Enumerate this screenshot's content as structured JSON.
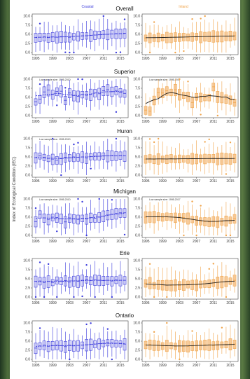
{
  "figure": {
    "y_axis_label": "Index of Ecological Condition (IEC)",
    "series_labels": [
      "Coastal",
      "Inland"
    ],
    "colors": {
      "coastal": "#3b3bdc",
      "inland": "#f0a44a",
      "trend": "#222222"
    }
  },
  "chart_data": [
    {
      "type": "box",
      "region": "Overall",
      "panels": [
        {
          "series": "Coastal",
          "note": "",
          "x": [
            1995,
            1996,
            1997,
            1998,
            1999,
            2000,
            2001,
            2002,
            2003,
            2004,
            2005,
            2006,
            2007,
            2008,
            2009,
            2010,
            2011,
            2012,
            2013,
            2014,
            2015,
            2016
          ],
          "median": [
            4.1,
            4.2,
            4.3,
            4.1,
            4.3,
            4.2,
            4.4,
            4.3,
            4.2,
            4.4,
            4.5,
            4.6,
            4.6,
            4.7,
            4.8,
            4.9,
            5.0,
            5.0,
            5.1,
            5.2,
            5.2,
            5.3
          ]
        },
        {
          "series": "Inland",
          "note": "",
          "x": [
            1995,
            1996,
            1997,
            1998,
            1999,
            2000,
            2001,
            2002,
            2003,
            2004,
            2005,
            2006,
            2007,
            2008,
            2009,
            2010,
            2011,
            2012,
            2013,
            2014,
            2015,
            2016
          ],
          "median": [
            4.0,
            4.1,
            4.0,
            4.2,
            4.1,
            4.2,
            4.1,
            4.3,
            4.2,
            4.3,
            4.2,
            4.3,
            4.4,
            4.3,
            4.4,
            4.4,
            4.5,
            4.4,
            4.5,
            4.5,
            4.6,
            4.6
          ]
        }
      ],
      "xticks": [
        "1995",
        "1999",
        "2003",
        "2007",
        "2011",
        "2015"
      ],
      "yticks": [
        "0.0",
        "2.5",
        "5.0",
        "7.5",
        "10.0"
      ],
      "ylim": [
        0,
        10
      ]
    },
    {
      "type": "box",
      "region": "Superior",
      "panels": [
        {
          "series": "Coastal",
          "note": "Low sample size: 1995-2010",
          "x": [
            1995,
            1996,
            1997,
            1998,
            1999,
            2000,
            2001,
            2002,
            2003,
            2004,
            2005,
            2006,
            2007,
            2008,
            2009,
            2010,
            2011,
            2012,
            2013,
            2014,
            2015,
            2016
          ],
          "median": [
            3.8,
            4.5,
            6.5,
            7.0,
            5.8,
            6.6,
            6.7,
            4.2,
            6.2,
            5.5,
            5.3,
            5.8,
            5.6,
            5.8,
            6.2,
            6.0,
            6.8,
            7.1,
            6.6,
            6.9,
            6.3,
            6.1
          ]
        },
        {
          "series": "Inland",
          "note": "Low sample size: 1995-2017",
          "x": [
            1995,
            1996,
            1997,
            1998,
            1999,
            2000,
            2001,
            2002,
            2003,
            2004,
            2005,
            2006,
            2007,
            2008,
            2009,
            2010,
            2011,
            2012,
            2013,
            2014,
            2015,
            2016
          ],
          "median": [
            1.5,
            1.2,
            4.2,
            6.3,
            6.2,
            6.8,
            6.4,
            7.1,
            5.8,
            5.6,
            5.2,
            3.6,
            5.2,
            5.0,
            5.0,
            5.0,
            7.9,
            5.2,
            5.0,
            4.6,
            4.3,
            3.6
          ]
        }
      ],
      "xticks": [
        "1995",
        "1999",
        "2003",
        "2007",
        "2011",
        "2015"
      ],
      "yticks": [
        "0.0",
        "2.5",
        "5.0",
        "7.5",
        "10.0"
      ],
      "ylim": [
        0,
        10
      ]
    },
    {
      "type": "box",
      "region": "Huron",
      "panels": [
        {
          "series": "Coastal",
          "note": "Low sample size: 1995-2010",
          "x": [
            1995,
            1996,
            1997,
            1998,
            1999,
            2000,
            2001,
            2002,
            2003,
            2004,
            2005,
            2006,
            2007,
            2008,
            2009,
            2010,
            2011,
            2012,
            2013,
            2014,
            2015,
            2016
          ],
          "median": [
            4.8,
            5.3,
            4.9,
            4.6,
            4.4,
            4.1,
            4.5,
            4.9,
            4.8,
            5.0,
            4.9,
            5.0,
            4.7,
            5.1,
            5.2,
            5.2,
            5.3,
            5.3,
            5.4,
            5.3,
            5.4,
            5.3
          ]
        },
        {
          "series": "Inland",
          "note": "",
          "x": [
            1995,
            1996,
            1997,
            1998,
            1999,
            2000,
            2001,
            2002,
            2003,
            2004,
            2005,
            2006,
            2007,
            2008,
            2009,
            2010,
            2011,
            2012,
            2013,
            2014,
            2015,
            2016
          ],
          "median": [
            4.4,
            4.6,
            4.3,
            4.5,
            4.4,
            4.4,
            4.6,
            4.4,
            4.5,
            4.5,
            4.4,
            4.6,
            4.5,
            4.6,
            4.5,
            4.6,
            4.6,
            4.5,
            4.6,
            4.6,
            4.5,
            4.6
          ]
        }
      ],
      "xticks": [
        "1995",
        "1999",
        "2003",
        "2007",
        "2011",
        "2015"
      ],
      "yticks": [
        "0.0",
        "2.5",
        "5.0",
        "7.5",
        "10.0"
      ],
      "ylim": [
        0,
        10
      ]
    },
    {
      "type": "box",
      "region": "Michigan",
      "panels": [
        {
          "series": "Coastal",
          "note": "Low sample size: 1995-2010",
          "x": [
            1995,
            1996,
            1997,
            1998,
            1999,
            2000,
            2001,
            2002,
            2003,
            2004,
            2005,
            2006,
            2007,
            2008,
            2009,
            2010,
            2011,
            2012,
            2013,
            2014,
            2015,
            2016
          ],
          "median": [
            3.8,
            5.8,
            4.8,
            4.4,
            5.0,
            4.9,
            4.6,
            3.7,
            4.8,
            4.6,
            4.4,
            4.7,
            4.5,
            4.9,
            4.7,
            5.0,
            5.3,
            5.6,
            5.8,
            6.0,
            6.2,
            6.2
          ]
        },
        {
          "series": "Inland",
          "note": "Low sample size: 1995-2017",
          "x": [
            1995,
            1996,
            1997,
            1998,
            1999,
            2000,
            2001,
            2002,
            2003,
            2004,
            2005,
            2006,
            2007,
            2008,
            2009,
            2010,
            2011,
            2012,
            2013,
            2014,
            2015,
            2016
          ],
          "median": [
            5.0,
            5.1,
            5.1,
            5.2,
            5.0,
            5.2,
            5.1,
            4.9,
            5.0,
            4.9,
            4.7,
            4.4,
            4.1,
            3.9,
            3.8,
            3.7,
            3.9,
            3.7,
            3.8,
            4.0,
            4.2,
            4.6
          ]
        }
      ],
      "xticks": [
        "1995",
        "1999",
        "2003",
        "2007",
        "2011",
        "2015"
      ],
      "yticks": [
        "0.0",
        "2.5",
        "5.0",
        "7.5",
        "10.0"
      ],
      "ylim": [
        0,
        10
      ]
    },
    {
      "type": "box",
      "region": "Erie",
      "panels": [
        {
          "series": "Coastal",
          "note": "",
          "x": [
            1995,
            1996,
            1997,
            1998,
            1999,
            2000,
            2001,
            2002,
            2003,
            2004,
            2005,
            2006,
            2007,
            2008,
            2009,
            2010,
            2011,
            2012,
            2013,
            2014,
            2015,
            2016
          ],
          "median": [
            4.3,
            4.4,
            4.0,
            4.3,
            4.0,
            4.6,
            4.4,
            4.5,
            4.1,
            4.4,
            4.3,
            4.6,
            4.8,
            4.5,
            4.7,
            4.6,
            4.5,
            4.6,
            4.4,
            4.7,
            4.6,
            4.6
          ]
        },
        {
          "series": "Inland",
          "note": "",
          "x": [
            1995,
            1996,
            1997,
            1998,
            1999,
            2000,
            2001,
            2002,
            2003,
            2004,
            2005,
            2006,
            2007,
            2008,
            2009,
            2010,
            2011,
            2012,
            2013,
            2014,
            2015,
            2016
          ],
          "median": [
            3.8,
            3.9,
            3.2,
            3.4,
            3.3,
            3.3,
            3.2,
            3.3,
            3.2,
            3.4,
            3.5,
            3.4,
            3.3,
            3.5,
            3.6,
            3.7,
            3.9,
            4.0,
            4.2,
            4.3,
            4.4,
            4.6
          ]
        }
      ],
      "xticks": [
        "1995",
        "1999",
        "2003",
        "2007",
        "2011",
        "2015"
      ],
      "yticks": [
        "0.0",
        "2.5",
        "5.0",
        "7.5",
        "10.0"
      ],
      "ylim": [
        0,
        10
      ]
    },
    {
      "type": "box",
      "region": "Ontario",
      "panels": [
        {
          "series": "Coastal",
          "note": "",
          "x": [
            1995,
            1996,
            1997,
            1998,
            1999,
            2000,
            2001,
            2002,
            2003,
            2004,
            2005,
            2006,
            2007,
            2008,
            2009,
            2010,
            2011,
            2012,
            2013,
            2014,
            2015,
            2016
          ],
          "median": [
            3.1,
            3.7,
            3.9,
            3.6,
            3.8,
            3.9,
            3.8,
            3.5,
            3.9,
            3.7,
            3.8,
            3.9,
            4.0,
            4.1,
            4.2,
            4.3,
            4.4,
            4.6,
            4.5,
            4.4,
            4.3,
            4.2
          ]
        },
        {
          "series": "Inland",
          "note": "",
          "x": [
            1995,
            1996,
            1997,
            1998,
            1999,
            2000,
            2001,
            2002,
            2003,
            2004,
            2005,
            2006,
            2007,
            2008,
            2009,
            2010,
            2011,
            2012,
            2013,
            2014,
            2015,
            2016
          ],
          "median": [
            4.0,
            4.1,
            3.9,
            3.8,
            3.7,
            3.8,
            3.8,
            3.6,
            3.7,
            3.7,
            3.6,
            3.7,
            3.8,
            3.9,
            4.0,
            4.0,
            3.8,
            3.9,
            4.0,
            4.1,
            4.2,
            4.2
          ]
        }
      ],
      "xticks": [
        "1995",
        "1999",
        "2003",
        "2007",
        "2011",
        "2015"
      ],
      "yticks": [
        "0.0",
        "2.5",
        "5.0",
        "7.5",
        "10.0"
      ],
      "ylim": [
        0,
        10
      ]
    }
  ]
}
